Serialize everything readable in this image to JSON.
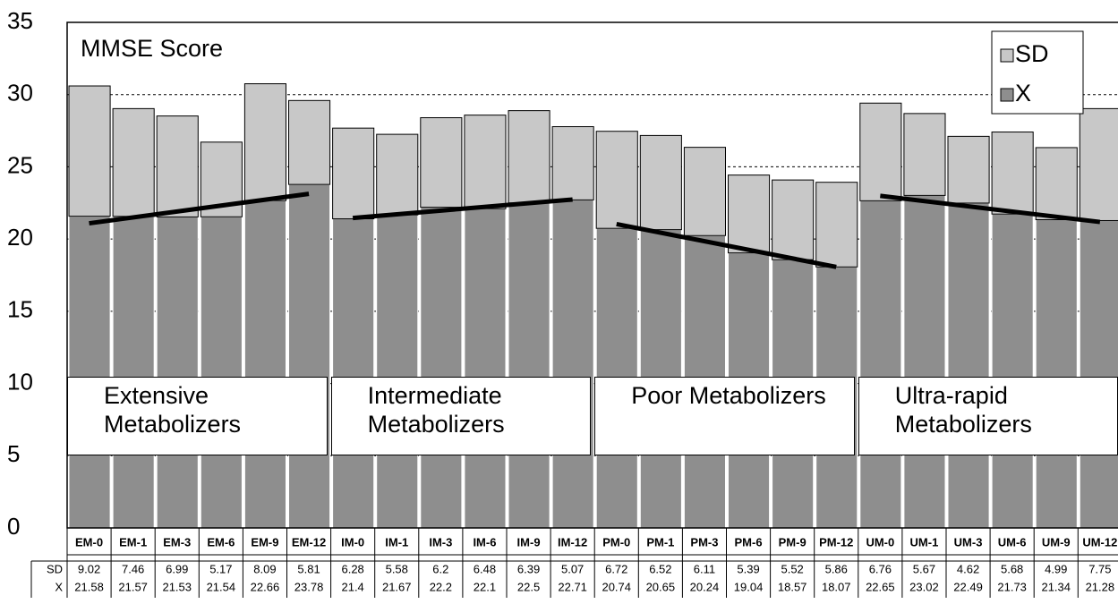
{
  "chart_data": {
    "type": "stacked-bar",
    "title": "MMSE Score",
    "categories": [
      "EM-0",
      "EM-1",
      "EM-3",
      "EM-6",
      "EM-9",
      "EM-12",
      "IM-0",
      "IM-1",
      "IM-3",
      "IM-6",
      "IM-9",
      "IM-12",
      "PM-0",
      "PM-1",
      "PM-3",
      "PM-6",
      "PM-9",
      "PM-12",
      "UM-0",
      "UM-1",
      "UM-3",
      "UM-6",
      "UM-9",
      "UM-12"
    ],
    "series": [
      {
        "name": "SD",
        "color": "#c8c8c8",
        "values": [
          9.02,
          7.46,
          6.99,
          5.17,
          8.09,
          5.81,
          6.28,
          5.58,
          6.2,
          6.48,
          6.39,
          5.07,
          6.72,
          6.52,
          6.11,
          5.39,
          5.52,
          5.86,
          6.76,
          5.67,
          4.62,
          5.68,
          4.99,
          7.75
        ]
      },
      {
        "name": "X",
        "color": "#8e8e8e",
        "values": [
          21.58,
          21.57,
          21.53,
          21.54,
          22.66,
          23.78,
          21.4,
          21.67,
          22.2,
          22.1,
          22.5,
          22.71,
          20.74,
          20.65,
          20.24,
          19.04,
          18.57,
          18.07,
          22.65,
          23.02,
          22.49,
          21.73,
          21.34,
          21.28
        ]
      }
    ],
    "groups": [
      "Extensive Metabolizers",
      "Intermediate Metabolizers",
      "Poor Metabolizers",
      "Ultra-rapid Metabolizers"
    ],
    "ylim": [
      0,
      35
    ],
    "yticks": [
      0,
      5,
      10,
      15,
      20,
      25,
      30,
      35
    ],
    "grid": true,
    "legend": "top-right",
    "trendlines": true
  }
}
